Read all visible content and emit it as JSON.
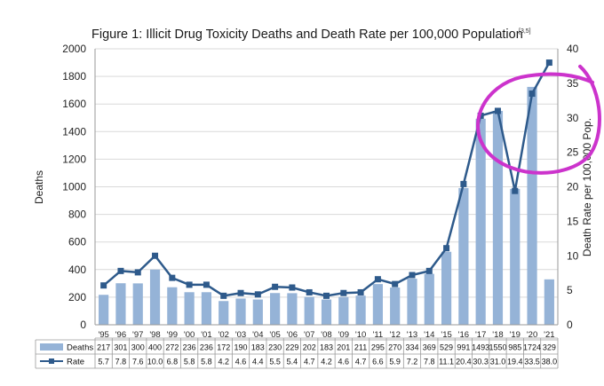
{
  "chart_data": {
    "type": "bar+line",
    "title": "Figure 1: Illicit Drug Toxicity Deaths and Death Rate per 100,000 Population",
    "title_superscript": "[3,5]",
    "categories": [
      "'95",
      "'96",
      "'97",
      "'98",
      "'99",
      "'00",
      "'01",
      "'02",
      "'03",
      "'04",
      "'05",
      "'06",
      "'07",
      "'08",
      "'09",
      "'10",
      "'11",
      "'12",
      "'13",
      "'14",
      "'15",
      "'16",
      "'17",
      "'18",
      "'19",
      "'20",
      "'21"
    ],
    "series": [
      {
        "name": "Deaths",
        "type": "bar",
        "axis": "left",
        "color": "#95b3d7",
        "values": [
          217,
          301,
          300,
          400,
          272,
          236,
          236,
          172,
          190,
          183,
          230,
          229,
          202,
          183,
          201,
          211,
          295,
          270,
          334,
          369,
          529,
          991,
          1493,
          1550,
          985,
          1724,
          329
        ]
      },
      {
        "name": "Rate",
        "type": "line",
        "axis": "right",
        "color": "#2e5a8b",
        "values": [
          5.7,
          7.8,
          7.6,
          10.0,
          6.8,
          5.8,
          5.8,
          4.2,
          4.6,
          4.4,
          5.5,
          5.4,
          4.7,
          4.2,
          4.6,
          4.7,
          6.6,
          5.9,
          7.2,
          7.8,
          11.1,
          20.4,
          30.3,
          31.0,
          19.4,
          33.5,
          38.0
        ]
      }
    ],
    "ylabel_left": "Deaths",
    "ylabel_right": "Death Rate per 100,000 Pop.",
    "ylim_left": [
      0,
      2000
    ],
    "yticks_left": [
      0,
      200,
      400,
      600,
      800,
      1000,
      1200,
      1400,
      1600,
      1800,
      2000
    ],
    "ylim_right": [
      0,
      40
    ],
    "yticks_right": [
      0,
      5,
      10,
      15,
      20,
      25,
      30,
      35,
      40
    ],
    "grid": true,
    "legend": "data table below chart",
    "annotation": {
      "type": "hand-drawn circle",
      "color": "#cc33cc",
      "target": "'19-'21 rate values"
    }
  }
}
